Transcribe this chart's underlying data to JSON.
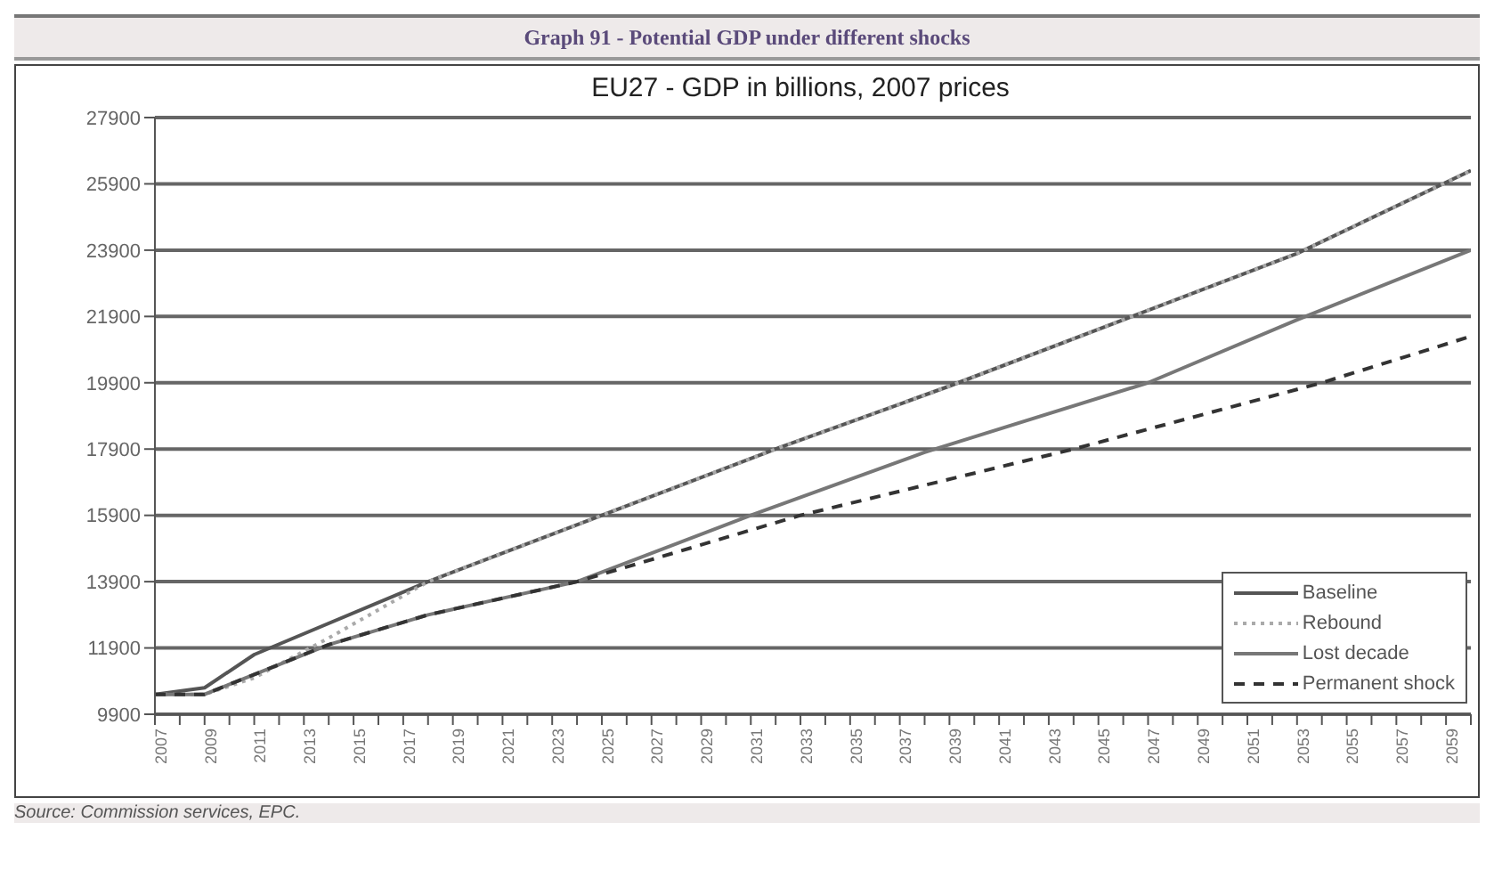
{
  "chart_data": {
    "type": "line",
    "title": "Graph 91 - Potential GDP under different shocks",
    "subtitle": "EU27 - GDP in billions, 2007 prices",
    "annotations": [
      "Source: Commission services, EPC."
    ],
    "xlim": [
      2007,
      2060
    ],
    "xticks": [
      2007,
      {
        "value": 2008,
        "label": null
      },
      2009,
      {
        "value": 2010,
        "label": null
      },
      2011,
      {
        "value": 2012,
        "label": null
      },
      2013,
      {
        "value": 2014,
        "label": null
      },
      2015,
      {
        "value": 2016,
        "label": null
      },
      2017,
      {
        "value": 2018,
        "label": null
      },
      2019,
      {
        "value": 2020,
        "label": null
      },
      2021,
      {
        "value": 2022,
        "label": null
      },
      2023,
      {
        "value": 2024,
        "label": null
      },
      2025,
      {
        "value": 2026,
        "label": null
      },
      2027,
      {
        "value": 2028,
        "label": null
      },
      2029,
      {
        "value": 2030,
        "label": null
      },
      2031,
      {
        "value": 2032,
        "label": null
      },
      2033,
      {
        "value": 2034,
        "label": null
      },
      2035,
      {
        "value": 2036,
        "label": null
      },
      2037,
      {
        "value": 2038,
        "label": null
      },
      2039,
      {
        "value": 2040,
        "label": null
      },
      2041,
      {
        "value": 2042,
        "label": null
      },
      2043,
      {
        "value": 2044,
        "label": null
      },
      2045,
      {
        "value": 2046,
        "label": null
      },
      2047,
      {
        "value": 2048,
        "label": null
      },
      2049,
      {
        "value": 2050,
        "label": null
      },
      2051,
      {
        "value": 2052,
        "label": null
      },
      2053,
      {
        "value": 2054,
        "label": null
      },
      2055,
      {
        "value": 2056,
        "label": null
      },
      2057,
      {
        "value": 2058,
        "label": null
      },
      2059,
      {
        "value": 2060,
        "label": null
      }
    ],
    "ylim": [
      9900,
      27900
    ],
    "yticks": [
      9900,
      11900,
      13900,
      15900,
      17900,
      19900,
      21900,
      23900,
      25900,
      27900
    ],
    "grid": "y",
    "legend": "bottom right",
    "marker": "none",
    "series": [
      {
        "name": "Baseline",
        "color": "#555555",
        "line_style": "solid",
        "x": [
          2007,
          2009,
          2011,
          2018,
          2025,
          2032,
          2039,
          2046,
          2053,
          2060
        ],
        "values": [
          10500,
          10700,
          11700,
          13900,
          15900,
          17900,
          19800,
          21800,
          23800,
          26300
        ]
      },
      {
        "name": "Rebound",
        "color": "#aaaaaa",
        "line_style": "dotted",
        "x": [
          2007,
          2009,
          2011,
          2014,
          2018,
          2025,
          2032,
          2039,
          2046,
          2053,
          2060
        ],
        "values": [
          10500,
          10500,
          11000,
          12200,
          13900,
          15900,
          17900,
          19800,
          21800,
          23800,
          26300
        ]
      },
      {
        "name": "Lost decade",
        "color": "#777777",
        "line_style": "solid",
        "x": [
          2007,
          2009,
          2011,
          2014,
          2018,
          2024,
          2031,
          2038,
          2047,
          2053,
          2060
        ],
        "values": [
          10500,
          10500,
          11100,
          12000,
          12900,
          13900,
          15900,
          17800,
          19900,
          21800,
          23900
        ]
      },
      {
        "name": "Permanent shock",
        "color": "#333333",
        "line_style": "dashed",
        "x": [
          2007,
          2009,
          2011,
          2014,
          2018,
          2024,
          2033,
          2044,
          2054,
          2060
        ],
        "values": [
          10500,
          10500,
          11100,
          12000,
          12900,
          13900,
          15900,
          17900,
          19900,
          21300
        ]
      }
    ]
  }
}
